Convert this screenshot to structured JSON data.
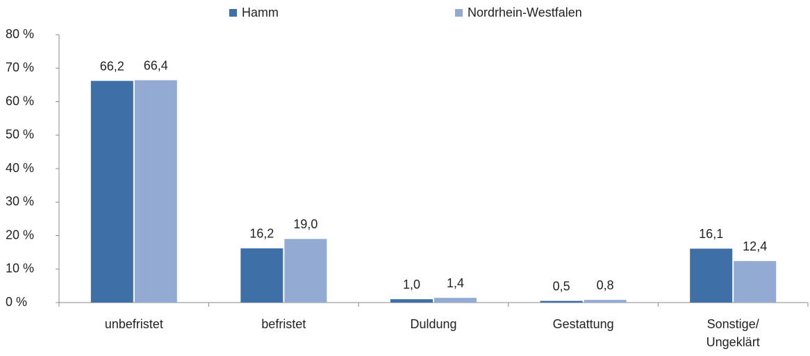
{
  "chart_data": {
    "type": "bar",
    "categories": [
      "unbefristet",
      "befristet",
      "Duldung",
      "Gestattung",
      "Sonstige/\nUngeklärt"
    ],
    "series": [
      {
        "name": "Hamm",
        "color": "#3e6fa6",
        "values": [
          66.2,
          16.2,
          1.0,
          0.5,
          16.1
        ],
        "value_labels": [
          "66,2",
          "16,2",
          "1,0",
          "0,5",
          "16,1"
        ]
      },
      {
        "name": "Nordrhein-Westfalen",
        "color": "#93aad2",
        "values": [
          66.4,
          19.0,
          1.4,
          0.8,
          12.4
        ],
        "value_labels": [
          "66,4",
          "19,0",
          "1,4",
          "0,8",
          "12,4"
        ]
      }
    ],
    "ylim": [
      0,
      80
    ],
    "yticks": [
      {
        "value": 0,
        "label": "0 %"
      },
      {
        "value": 10,
        "label": "10 %"
      },
      {
        "value": 20,
        "label": "20 %"
      },
      {
        "value": 30,
        "label": "30 %"
      },
      {
        "value": 40,
        "label": "40 %"
      },
      {
        "value": 50,
        "label": "50 %"
      },
      {
        "value": 60,
        "label": "60 %"
      },
      {
        "value": 70,
        "label": "70 %"
      },
      {
        "value": 80,
        "label": "80 %"
      }
    ],
    "grid": false,
    "legend": "top"
  }
}
